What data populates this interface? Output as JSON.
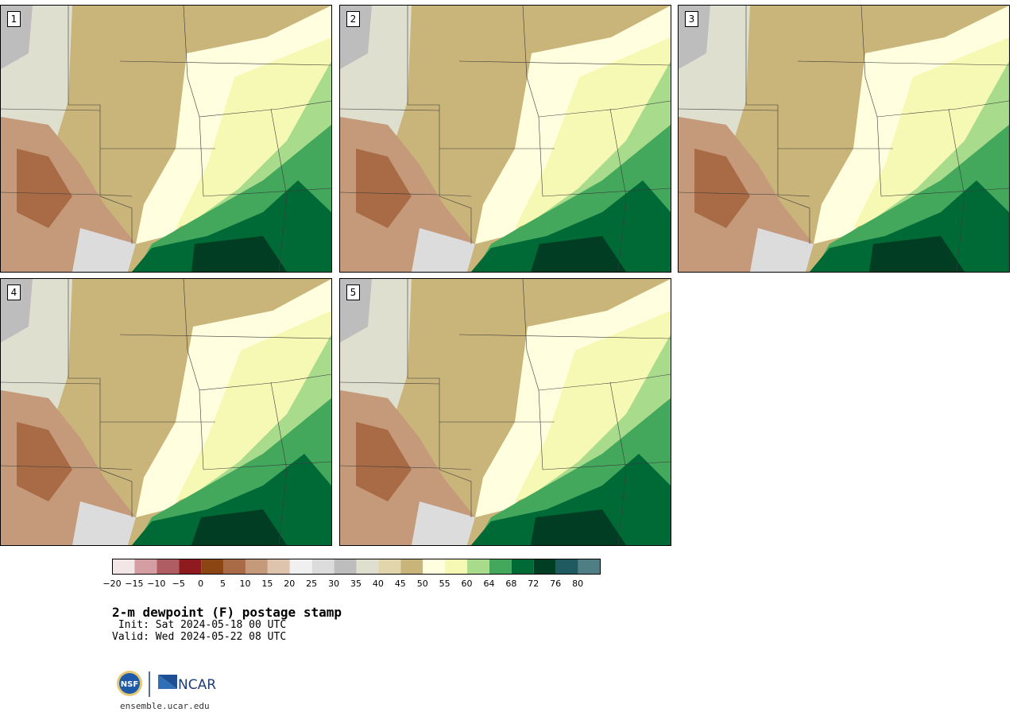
{
  "title": "2-m dewpoint (F) postage stamp",
  "init": " Init: Sat 2024-05-18 00 UTC",
  "valid": "Valid: Wed 2024-05-22 08 UTC",
  "site": "ensemble.ucar.edu",
  "logo": {
    "nsf": "NSF",
    "ncar": "NCAR"
  },
  "panels": [
    {
      "label": "1"
    },
    {
      "label": "2"
    },
    {
      "label": "3"
    },
    {
      "label": "4"
    },
    {
      "label": "5"
    }
  ],
  "colorbar": {
    "colors": [
      "#f3e6e6",
      "#d59ea3",
      "#b05c63",
      "#8c1a1f",
      "#8a4513",
      "#a86b46",
      "#c49a7a",
      "#dec3ad",
      "#f0f0f0",
      "#dcdcdc",
      "#bdbdbd",
      "#dfdfd0",
      "#e2d5ab",
      "#c9b47a",
      "#ffffe0",
      "#f6f9b4",
      "#a8dc8c",
      "#43a85b",
      "#006a37",
      "#003d22",
      "#1e5a5f",
      "#4f7f85"
    ],
    "tick_labels": [
      "−20",
      "−15",
      "−10",
      "−5",
      "0",
      "5",
      "10",
      "15",
      "20",
      "25",
      "30",
      "35",
      "40",
      "45",
      "50",
      "55",
      "60",
      "64",
      "68",
      "72",
      "76",
      "80"
    ]
  }
}
